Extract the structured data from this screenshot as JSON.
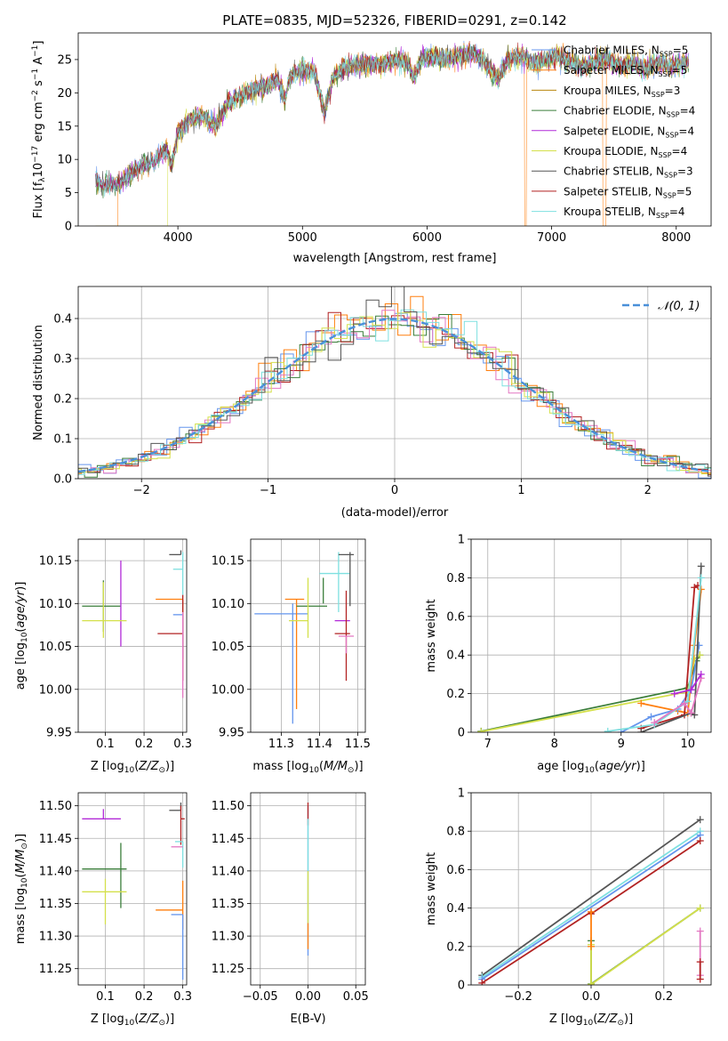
{
  "chart_data": [
    {
      "id": "spectrum",
      "type": "line",
      "title": "PLATE=0835, MJD=52326, FIBERID=0291, z=0.142",
      "xlabel": "wavelength [Angstrom, rest frame]",
      "ylabel": "Flux [f_λ 10^-17 erg cm^-2 s^-1 A^-1]",
      "xlim": [
        3200,
        8280
      ],
      "ylim": [
        0,
        29
      ],
      "xticks": [
        4000,
        5000,
        6000,
        7000,
        8000
      ],
      "yticks": [
        0,
        5,
        10,
        15,
        20,
        25
      ],
      "legend_position": "top-right",
      "spectrum_anchor_points": {
        "x": [
          3340,
          3400,
          3450,
          3500,
          3600,
          3700,
          3800,
          3900,
          3950,
          4000,
          4100,
          4200,
          4300,
          4400,
          4500,
          4600,
          4700,
          4800,
          4861,
          4900,
          5000,
          5100,
          5175,
          5250,
          5350,
          5450,
          5550,
          5650,
          5750,
          5850,
          5890,
          5950,
          6050,
          6150,
          6250,
          6350,
          6450,
          6563,
          6650,
          6750,
          6850,
          6950,
          7050,
          7150,
          7250,
          7350,
          7450,
          7550,
          7650,
          7750,
          7850,
          7950,
          8100
        ],
        "y": [
          6.8,
          6.2,
          6.5,
          6.0,
          7.5,
          9.0,
          9.5,
          11.5,
          9.0,
          14.0,
          16.0,
          16.5,
          15.0,
          18.5,
          19.5,
          20.5,
          21.0,
          22.0,
          19.0,
          22.5,
          23.5,
          23.0,
          17.0,
          22.5,
          24.0,
          24.0,
          24.5,
          24.0,
          25.0,
          24.5,
          22.0,
          25.0,
          25.5,
          25.0,
          25.5,
          26.0,
          25.0,
          22.0,
          25.0,
          25.5,
          24.5,
          25.0,
          25.5,
          24.5,
          24.0,
          24.5,
          25.0,
          24.0,
          24.5,
          23.5,
          24.5,
          24.0,
          24.5
        ]
      },
      "series": [
        {
          "name": "Chabrier MILES, N_SSP=5",
          "color": "#6495ed"
        },
        {
          "name": "Salpeter MILES, N_SSP=5",
          "color": "#ff7f0e"
        },
        {
          "name": "Kroupa MILES, N_SSP=3",
          "color": "#b8860b"
        },
        {
          "name": "Chabrier ELODIE, N_SSP=4",
          "color": "#3a7d3a"
        },
        {
          "name": "Salpeter ELODIE, N_SSP=4",
          "color": "#b22ad8"
        },
        {
          "name": "Kroupa ELODIE, N_SSP=4",
          "color": "#d4e04b"
        },
        {
          "name": "Chabrier STELIB, N_SSP=3",
          "color": "#555555"
        },
        {
          "name": "Salpeter STELIB, N_SSP=5",
          "color": "#b22222"
        },
        {
          "name": "Kroupa STELIB, N_SSP=4",
          "color": "#7ee0e0"
        }
      ]
    },
    {
      "id": "residuals",
      "type": "line",
      "xlabel": "(data-model)/error",
      "ylabel": "Normed distribution",
      "xlim": [
        -2.5,
        2.5
      ],
      "ylim": [
        0,
        0.48
      ],
      "xticks": [
        -2,
        -1,
        0,
        1,
        2
      ],
      "yticks": [
        0.0,
        0.1,
        0.2,
        0.3,
        0.4
      ],
      "grid": true,
      "legend_position": "top-right",
      "legend": "𝒩(0, 1)",
      "normal_curve": {
        "mean": 0,
        "sigma": 1,
        "color": "#4a90d9"
      },
      "bin_width": 0.1,
      "series": [
        {
          "color": "#6495ed"
        },
        {
          "color": "#ff7f0e"
        },
        {
          "color": "#3a7d3a"
        },
        {
          "color": "#b22222"
        },
        {
          "color": "#e377c2"
        },
        {
          "color": "#d4e04b"
        },
        {
          "color": "#7ee0e0"
        },
        {
          "color": "#555555"
        }
      ]
    },
    {
      "id": "age-z",
      "type": "scatter",
      "xlabel": "Z [log10(Z/Z⊙)]",
      "ylabel": "age [log10(age/yr)]",
      "xlim": [
        0.03,
        0.31
      ],
      "ylim": [
        9.95,
        10.175
      ],
      "xticks": [
        0.1,
        0.2,
        0.3
      ],
      "yticks": [
        9.95,
        10.0,
        10.05,
        10.1,
        10.15
      ],
      "yticklabels": [
        "9.95",
        "10.00",
        "10.05",
        "10.10",
        "10.15"
      ],
      "grid": true,
      "points": [
        {
          "x": 0.095,
          "y": 10.097,
          "xerr": [
            0.055,
            0.045
          ],
          "yerr": [
            0.03,
            0.03
          ],
          "color": "#3a7d3a"
        },
        {
          "x": 0.14,
          "y": 10.095,
          "xerr": [
            0.0,
            0.0
          ],
          "yerr": [
            0.045,
            0.055
          ],
          "color": "#b22ad8"
        },
        {
          "x": 0.095,
          "y": 10.08,
          "xerr": [
            0.055,
            0.06
          ],
          "yerr": [
            0.02,
            0.045
          ],
          "color": "#d4e04b"
        },
        {
          "x": 0.295,
          "y": 10.157,
          "xerr": [
            0.03,
            0.0
          ],
          "yerr": [
            0.0,
            0.005
          ],
          "color": "#555555"
        },
        {
          "x": 0.3,
          "y": 10.14,
          "xerr": [
            0.025,
            0.0
          ],
          "yerr": [
            0.03,
            0.02
          ],
          "color": "#7ee0e0"
        },
        {
          "x": 0.3,
          "y": 10.105,
          "xerr": [
            0.07,
            0.0
          ],
          "yerr": [
            0.07,
            0.0
          ],
          "color": "#ff7f0e"
        },
        {
          "x": 0.3,
          "y": 10.087,
          "xerr": [
            0.025,
            0.0
          ],
          "yerr": [
            0.05,
            0.0
          ],
          "color": "#6495ed"
        },
        {
          "x": 0.3,
          "y": 10.065,
          "xerr": [
            0.065,
            0.0
          ],
          "yerr": [
            0.055,
            0.045
          ],
          "color": "#b22222"
        },
        {
          "x": 0.3,
          "y": 10.06,
          "xerr": [
            0.0,
            0.0
          ],
          "yerr": [
            0.07,
            0.03
          ],
          "color": "#e377c2"
        }
      ]
    },
    {
      "id": "age-mass",
      "type": "scatter",
      "xlabel": "mass [log10(M/M⊙)]",
      "xlim": [
        11.22,
        11.52
      ],
      "ylim": [
        9.95,
        10.175
      ],
      "xticks": [
        11.3,
        11.4,
        11.5
      ],
      "yticks": [
        9.95,
        10.0,
        10.05,
        10.1,
        10.15
      ],
      "yticklabels": [
        "9.95",
        "10.00",
        "10.05",
        "10.10",
        "10.15"
      ],
      "grid": true,
      "points": [
        {
          "x": 11.33,
          "y": 10.088,
          "xerr": [
            0.1,
            0.04
          ],
          "yerr": [
            0.128,
            0.012
          ],
          "color": "#6495ed"
        },
        {
          "x": 11.34,
          "y": 10.105,
          "xerr": [
            0.03,
            0.02
          ],
          "yerr": [
            0.128,
            0.0
          ],
          "color": "#ff7f0e"
        },
        {
          "x": 11.37,
          "y": 10.097,
          "xerr": [
            0.03,
            0.05
          ],
          "yerr": [
            0.0,
            0.0
          ],
          "color": "#3a7d3a"
        },
        {
          "x": 11.37,
          "y": 10.08,
          "xerr": [
            0.05,
            0.0
          ],
          "yerr": [
            0.02,
            0.05
          ],
          "color": "#d4e04b"
        },
        {
          "x": 11.41,
          "y": 10.1,
          "xerr": [
            0.0,
            0.0
          ],
          "yerr": [
            0.0,
            0.03
          ],
          "color": "#3a7d3a"
        },
        {
          "x": 11.45,
          "y": 10.135,
          "xerr": [
            0.05,
            0.03
          ],
          "yerr": [
            0.045,
            0.025
          ],
          "color": "#7ee0e0"
        },
        {
          "x": 11.48,
          "y": 10.157,
          "xerr": [
            0.03,
            0.01
          ],
          "yerr": [
            0.06,
            0.003
          ],
          "color": "#555555"
        },
        {
          "x": 11.47,
          "y": 10.08,
          "xerr": [
            0.03,
            0.01
          ],
          "yerr": [
            0.0,
            0.0
          ],
          "color": "#b22ad8"
        },
        {
          "x": 11.47,
          "y": 10.065,
          "xerr": [
            0.03,
            0.01
          ],
          "yerr": [
            0.055,
            0.05
          ],
          "color": "#b22222"
        },
        {
          "x": 11.47,
          "y": 10.062,
          "xerr": [
            0.02,
            0.02
          ],
          "yerr": [
            0.02,
            0.0
          ],
          "color": "#e377c2"
        }
      ]
    },
    {
      "id": "massweight-age",
      "type": "line",
      "xlabel": "age [log10(age/yr)]",
      "ylabel": "mass weight",
      "xlim": [
        6.75,
        10.35
      ],
      "ylim": [
        0,
        1
      ],
      "xticks": [
        7,
        8,
        9,
        10
      ],
      "yticks": [
        0.0,
        0.2,
        0.4,
        0.6,
        0.8,
        1.0
      ],
      "grid": true,
      "series": [
        {
          "color": "#3a7d3a",
          "x": [
            6.9,
            10.0,
            10.13,
            10.18
          ],
          "y": [
            0.005,
            0.23,
            0.37,
            0.4
          ]
        },
        {
          "color": "#d4e04b",
          "x": [
            6.9,
            10.0,
            10.1,
            10.18
          ],
          "y": [
            0.003,
            0.21,
            0.38,
            0.4
          ]
        },
        {
          "color": "#ff7f0e",
          "x": [
            9.3,
            9.85,
            10.0,
            10.1,
            10.2
          ],
          "y": [
            0.15,
            0.11,
            0.1,
            0.45,
            0.74
          ]
        },
        {
          "color": "#6495ed",
          "x": [
            9.0,
            9.45,
            9.85,
            10.05,
            10.17
          ],
          "y": [
            0.0,
            0.08,
            0.12,
            0.22,
            0.45
          ]
        },
        {
          "color": "#b22222",
          "x": [
            9.3,
            9.95,
            10.1,
            10.15
          ],
          "y": [
            0.02,
            0.09,
            0.75,
            0.76
          ]
        },
        {
          "color": "#555555",
          "x": [
            9.3,
            10.05,
            10.1,
            10.2
          ],
          "y": [
            0.0,
            0.1,
            0.09,
            0.86
          ]
        },
        {
          "color": "#7ee0e0",
          "x": [
            8.8,
            9.5,
            10.0,
            10.2
          ],
          "y": [
            0.005,
            0.04,
            0.16,
            0.8
          ]
        },
        {
          "color": "#e377c2",
          "x": [
            9.5,
            9.95,
            10.05,
            10.2
          ],
          "y": [
            0.05,
            0.15,
            0.1,
            0.28
          ]
        },
        {
          "color": "#b22ad8",
          "x": [
            9.8,
            10.05,
            10.2
          ],
          "y": [
            0.2,
            0.22,
            0.3
          ]
        }
      ]
    },
    {
      "id": "mass-z",
      "type": "scatter",
      "xlabel": "Z [log10(Z/Z⊙)]",
      "ylabel": "mass [log10(M/M⊙)]",
      "xlim": [
        0.03,
        0.31
      ],
      "ylim": [
        11.225,
        11.52
      ],
      "xticks": [
        0.1,
        0.2,
        0.3
      ],
      "yticks": [
        11.25,
        11.3,
        11.35,
        11.4,
        11.45,
        11.5
      ],
      "yticklabels": [
        "11.25",
        "11.30",
        "11.35",
        "11.40",
        "11.45",
        "11.50"
      ],
      "grid": true,
      "points": [
        {
          "x": 0.095,
          "y": 11.48,
          "xerr": [
            0.055,
            0.045
          ],
          "yerr": [
            0.0,
            0.015
          ],
          "color": "#b22ad8"
        },
        {
          "x": 0.14,
          "y": 11.403,
          "xerr": [
            0.1,
            0.015
          ],
          "yerr": [
            0.06,
            0.04
          ],
          "color": "#3a7d3a"
        },
        {
          "x": 0.1,
          "y": 11.368,
          "xerr": [
            0.06,
            0.055
          ],
          "yerr": [
            0.05,
            0.02
          ],
          "color": "#d4e04b"
        },
        {
          "x": 0.295,
          "y": 11.493,
          "xerr": [
            0.03,
            0.0
          ],
          "yerr": [
            0.0,
            0.012
          ],
          "color": "#555555"
        },
        {
          "x": 0.295,
          "y": 11.48,
          "xerr": [
            0.0,
            0.01
          ],
          "yerr": [
            0.04,
            0.02
          ],
          "color": "#b22222"
        },
        {
          "x": 0.3,
          "y": 11.445,
          "xerr": [
            0.02,
            0.0
          ],
          "yerr": [
            0.04,
            0.0
          ],
          "color": "#7ee0e0"
        },
        {
          "x": 0.3,
          "y": 11.437,
          "xerr": [
            0.03,
            0.0
          ],
          "yerr": [
            0.0,
            0.0
          ],
          "color": "#e377c2"
        },
        {
          "x": 0.3,
          "y": 11.34,
          "xerr": [
            0.07,
            0.0
          ],
          "yerr": [
            0.03,
            0.045
          ],
          "color": "#ff7f0e"
        },
        {
          "x": 0.3,
          "y": 11.333,
          "xerr": [
            0.03,
            0.0
          ],
          "yerr": [
            0.1,
            0.0
          ],
          "color": "#6495ed"
        }
      ]
    },
    {
      "id": "mass-ebv",
      "type": "scatter",
      "xlabel": "E(B-V)",
      "xlim": [
        -0.06,
        0.06
      ],
      "ylim": [
        11.225,
        11.52
      ],
      "xticks": [
        -0.05,
        0.0,
        0.05
      ],
      "xticklabels": [
        "−0.05",
        "0.00",
        "0.05"
      ],
      "yticks": [
        11.25,
        11.3,
        11.35,
        11.4,
        11.45,
        11.5
      ],
      "yticklabels": [
        "11.25",
        "11.30",
        "11.35",
        "11.40",
        "11.45",
        "11.50"
      ],
      "grid": true,
      "vertical_segments": [
        {
          "x": 0.0,
          "y0": 11.27,
          "y1": 11.5,
          "color": "#6495ed"
        },
        {
          "x": 0.0,
          "y0": 11.28,
          "y1": 11.32,
          "color": "#ff7f0e"
        },
        {
          "x": 0.0,
          "y0": 11.32,
          "y1": 11.4,
          "color": "#d4e04b"
        },
        {
          "x": 0.0,
          "y0": 11.47,
          "y1": 11.505,
          "color": "#b22222"
        },
        {
          "x": 0.0,
          "y0": 11.4,
          "y1": 11.48,
          "color": "#7ee0e0"
        }
      ]
    },
    {
      "id": "massweight-z",
      "type": "line",
      "xlabel": "Z [log10(Z/Z⊙)]",
      "ylabel": "mass weight",
      "xlim": [
        -0.33,
        0.33
      ],
      "ylim": [
        0,
        1
      ],
      "xticks": [
        -0.2,
        0.0,
        0.2
      ],
      "xticklabels": [
        "−0.2",
        "0.0",
        "0.2"
      ],
      "yticks": [
        0.0,
        0.2,
        0.4,
        0.6,
        0.8,
        1.0
      ],
      "grid": true,
      "series": [
        {
          "color": "#555555",
          "x": [
            -0.3,
            0.3
          ],
          "y": [
            0.05,
            0.86
          ]
        },
        {
          "color": "#7ee0e0",
          "x": [
            -0.3,
            0.3
          ],
          "y": [
            0.04,
            0.8
          ]
        },
        {
          "color": "#6495ed",
          "x": [
            -0.3,
            0.3
          ],
          "y": [
            0.03,
            0.78
          ]
        },
        {
          "color": "#b22222",
          "x": [
            -0.3,
            0.0,
            0.0,
            0.3
          ],
          "y": [
            0.01,
            0.38,
            0.37,
            0.75
          ]
        },
        {
          "color": "#3a7d3a",
          "x": [
            0.0,
            0.0,
            0.3
          ],
          "y": [
            0.23,
            0.005,
            0.4
          ]
        },
        {
          "color": "#d4e04b",
          "x": [
            0.0,
            0.0,
            0.3
          ],
          "y": [
            0.21,
            0.003,
            0.4
          ]
        },
        {
          "color": "#ff7f0e",
          "x": [
            0.0,
            0.0
          ],
          "y": [
            0.38,
            0.2
          ]
        },
        {
          "color": "#e377c2",
          "x": [
            0.3,
            0.3
          ],
          "y": [
            0.28,
            0.05
          ]
        },
        {
          "color": "#b22222",
          "x": [
            0.3,
            0.3
          ],
          "y": [
            0.12,
            0.03
          ]
        }
      ]
    }
  ]
}
